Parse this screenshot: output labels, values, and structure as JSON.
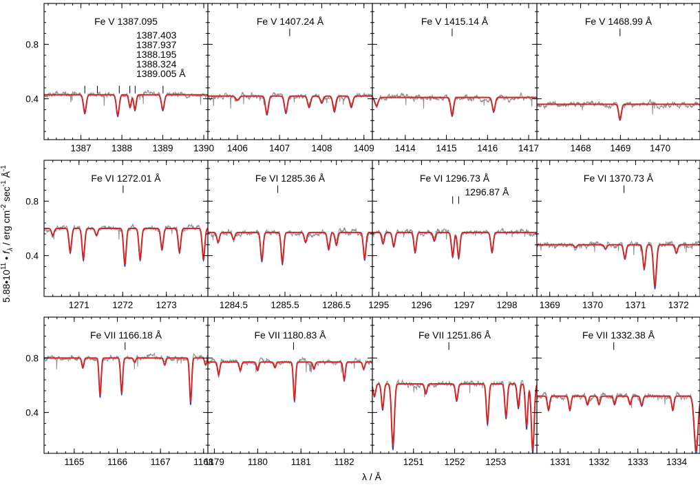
{
  "chart_data": {
    "type": "line",
    "xlabel": "λ / Å",
    "ylabel_parts": {
      "scale": "5.88•10",
      "scale_exp": "11",
      "dot": " • ",
      "f": "f",
      "lambda_sub": "λ",
      "unit_a": " / erg cm",
      "unit_a_exp": "-2",
      "unit_b": " sec",
      "unit_b_exp": "-1",
      "unit_c": " Å",
      "unit_c_exp": "-1"
    },
    "rows": [
      {
        "ylim": [
          0.1,
          1.1
        ],
        "yticks": [
          0.4,
          0.8
        ],
        "ytick_labels": [
          "0.4",
          "0.8"
        ],
        "panels": [
          {
            "xlim": [
              1386.1,
              1390.1
            ],
            "xticks": [
              1387,
              1388,
              1389,
              1390
            ],
            "xtick_labels": [
              "1387",
              "1388",
              "1389",
              "1390"
            ],
            "label": "Fe V 1387.095",
            "extra_labels": [
              "1387.403",
              "1387.937",
              "1388.195",
              "1388.324",
              "1389.005 Å"
            ],
            "markers": [
              1387.095,
              1387.403,
              1387.937,
              1388.195,
              1388.324,
              1389.005
            ],
            "marker_y": 0.44,
            "continuum": 0.43,
            "lines": [
              {
                "x": 1387.095,
                "depth": 0.13,
                "width": 0.035
              },
              {
                "x": 1387.9,
                "depth": 0.15,
                "width": 0.035
              },
              {
                "x": 1388.2,
                "depth": 0.09,
                "width": 0.03
              },
              {
                "x": 1388.32,
                "depth": 0.11,
                "width": 0.03
              },
              {
                "x": 1389.0,
                "depth": 0.11,
                "width": 0.035
              }
            ]
          },
          {
            "xlim": [
              1405.3,
              1409.2
            ],
            "xticks": [
              1406,
              1407,
              1408,
              1409
            ],
            "xtick_labels": [
              "1406",
              "1407",
              "1408",
              "1409"
            ],
            "label": "Fe V 1407.24 Å",
            "extra_labels": [],
            "markers": [
              1407.24
            ],
            "marker_y": 0.86,
            "continuum": 0.42,
            "lines": [
              {
                "x": 1406.0,
                "depth": 0.03,
                "width": 0.04
              },
              {
                "x": 1406.7,
                "depth": 0.13,
                "width": 0.035
              },
              {
                "x": 1407.15,
                "depth": 0.12,
                "width": 0.035
              },
              {
                "x": 1407.7,
                "depth": 0.08,
                "width": 0.035
              },
              {
                "x": 1408.0,
                "depth": 0.05,
                "width": 0.035
              },
              {
                "x": 1408.3,
                "depth": 0.11,
                "width": 0.035
              },
              {
                "x": 1408.7,
                "depth": 0.08,
                "width": 0.035
              }
            ]
          },
          {
            "xlim": [
              1413.2,
              1417.2
            ],
            "xticks": [
              1414,
              1415,
              1416,
              1417
            ],
            "xtick_labels": [
              "1414",
              "1415",
              "1416",
              "1417"
            ],
            "label": "Fe V 1415.14 Å",
            "extra_labels": [],
            "markers": [
              1415.14
            ],
            "marker_y": 0.86,
            "continuum": 0.41,
            "lines": [
              {
                "x": 1413.3,
                "depth": 0.06,
                "width": 0.04
              },
              {
                "x": 1415.14,
                "depth": 0.13,
                "width": 0.035
              },
              {
                "x": 1416.15,
                "depth": 0.1,
                "width": 0.035
              }
            ]
          },
          {
            "xlim": [
              1466.9,
              1471.0
            ],
            "xticks": [
              1468,
              1469,
              1470
            ],
            "xtick_labels": [
              "1468",
              "1469",
              "1470"
            ],
            "label": "Fe V 1468.99 Å",
            "extra_labels": [],
            "markers": [
              1468.99
            ],
            "marker_y": 0.86,
            "continuum": 0.36,
            "lines": [
              {
                "x": 1468.99,
                "depth": 0.11,
                "width": 0.035
              }
            ]
          }
        ]
      },
      {
        "ylim": [
          0.1,
          1.1
        ],
        "yticks": [
          0.4,
          0.8
        ],
        "ytick_labels": [
          "0.4",
          "0.8"
        ],
        "panels": [
          {
            "xlim": [
              1270.2,
              1273.95
            ],
            "xticks": [
              1271,
              1272,
              1273
            ],
            "xtick_labels": [
              "1271",
              "1272",
              "1273"
            ],
            "label": "Fe VI 1272.01 Å",
            "extra_labels": [],
            "markers": [
              1272.01
            ],
            "marker_y": 0.86,
            "continuum": 0.6,
            "lines": [
              {
                "x": 1270.4,
                "depth": 0.05,
                "width": 0.03
              },
              {
                "x": 1270.8,
                "depth": 0.17,
                "width": 0.03
              },
              {
                "x": 1271.1,
                "depth": 0.22,
                "width": 0.03
              },
              {
                "x": 1271.4,
                "depth": 0.05,
                "width": 0.03
              },
              {
                "x": 1272.05,
                "depth": 0.26,
                "width": 0.03
              },
              {
                "x": 1272.4,
                "depth": 0.22,
                "width": 0.03
              },
              {
                "x": 1272.9,
                "depth": 0.15,
                "width": 0.03
              },
              {
                "x": 1273.3,
                "depth": 0.17,
                "width": 0.03
              },
              {
                "x": 1273.85,
                "depth": 0.22,
                "width": 0.03
              }
            ]
          },
          {
            "xlim": [
              1284.0,
              1287.2
            ],
            "xticks": [
              1284.5,
              1285.5,
              1286.5
            ],
            "xtick_labels": [
              "1284.5",
              "1285.5",
              "1286.5"
            ],
            "label": "Fe VI 1285.36 Å",
            "extra_labels": [],
            "markers": [
              1285.36
            ],
            "marker_y": 0.86,
            "continuum": 0.57,
            "lines": [
              {
                "x": 1284.2,
                "depth": 0.07,
                "width": 0.025
              },
              {
                "x": 1284.5,
                "depth": 0.05,
                "width": 0.025
              },
              {
                "x": 1285.05,
                "depth": 0.2,
                "width": 0.025
              },
              {
                "x": 1285.45,
                "depth": 0.22,
                "width": 0.025
              },
              {
                "x": 1285.9,
                "depth": 0.07,
                "width": 0.025
              },
              {
                "x": 1286.35,
                "depth": 0.12,
                "width": 0.025
              },
              {
                "x": 1286.5,
                "depth": 0.09,
                "width": 0.025
              },
              {
                "x": 1287.05,
                "depth": 0.19,
                "width": 0.025
              }
            ]
          },
          {
            "xlim": [
              1294.85,
              1298.7
            ],
            "xticks": [
              1295,
              1296,
              1297,
              1298
            ],
            "xtick_labels": [
              "1295",
              "1296",
              "1297",
              "1298"
            ],
            "label": "Fe VI 1296.73 Å",
            "extra_labels": [
              "1296.87 Å"
            ],
            "markers": [
              1296.73,
              1296.87
            ],
            "marker_y": 0.78,
            "continuum": 0.57,
            "lines": [
              {
                "x": 1295.1,
                "depth": 0.08,
                "width": 0.03
              },
              {
                "x": 1295.35,
                "depth": 0.1,
                "width": 0.03
              },
              {
                "x": 1295.85,
                "depth": 0.14,
                "width": 0.03
              },
              {
                "x": 1296.3,
                "depth": 0.06,
                "width": 0.03
              },
              {
                "x": 1296.73,
                "depth": 0.17,
                "width": 0.03
              },
              {
                "x": 1296.87,
                "depth": 0.18,
                "width": 0.03
              },
              {
                "x": 1297.65,
                "depth": 0.14,
                "width": 0.03
              }
            ]
          },
          {
            "xlim": [
              1368.7,
              1372.5
            ],
            "xticks": [
              1369,
              1370,
              1371,
              1372
            ],
            "xtick_labels": [
              "1369",
              "1370",
              "1371",
              "1372"
            ],
            "label": "Fe VI 1370.73 Å",
            "extra_labels": [],
            "markers": [
              1370.73
            ],
            "marker_y": 0.86,
            "continuum": 0.48,
            "lines": [
              {
                "x": 1369.6,
                "depth": 0.02,
                "width": 0.03
              },
              {
                "x": 1370.3,
                "depth": 0.03,
                "width": 0.03
              },
              {
                "x": 1370.75,
                "depth": 0.1,
                "width": 0.03
              },
              {
                "x": 1371.2,
                "depth": 0.17,
                "width": 0.03
              },
              {
                "x": 1371.45,
                "depth": 0.3,
                "width": 0.035
              },
              {
                "x": 1371.95,
                "depth": 0.06,
                "width": 0.03
              }
            ]
          }
        ]
      },
      {
        "ylim": [
          0.1,
          1.1
        ],
        "yticks": [
          0.4,
          0.8
        ],
        "ytick_labels": [
          "0.4",
          "0.8"
        ],
        "panels": [
          {
            "xlim": [
              1164.3,
              1168.1
            ],
            "xticks": [
              1165,
              1166,
              1167,
              1168
            ],
            "xtick_labels": [
              "1165",
              "1166",
              "1167",
              "1168"
            ],
            "label": "Fe VII 1166.18 Å",
            "extra_labels": [],
            "markers": [
              1166.18
            ],
            "marker_y": 0.86,
            "continuum": 0.8,
            "lines": [
              {
                "x": 1165.2,
                "depth": 0.07,
                "width": 0.025
              },
              {
                "x": 1165.6,
                "depth": 0.27,
                "width": 0.025
              },
              {
                "x": 1166.1,
                "depth": 0.25,
                "width": 0.025
              },
              {
                "x": 1166.4,
                "depth": 0.03,
                "width": 0.025
              },
              {
                "x": 1167.1,
                "depth": 0.05,
                "width": 0.025
              },
              {
                "x": 1167.7,
                "depth": 0.32,
                "width": 0.025
              },
              {
                "x": 1168.05,
                "depth": 0.05,
                "width": 0.025
              }
            ]
          },
          {
            "xlim": [
              1178.85,
              1182.65
            ],
            "xticks": [
              1179,
              1180,
              1181,
              1182
            ],
            "xtick_labels": [
              "1179",
              "1180",
              "1181",
              "1182"
            ],
            "label": "Fe VII 1180.83 Å",
            "extra_labels": [],
            "markers": [
              1180.83
            ],
            "marker_y": 0.86,
            "continuum": 0.77,
            "lines": [
              {
                "x": 1179.1,
                "depth": 0.09,
                "width": 0.025
              },
              {
                "x": 1179.6,
                "depth": 0.06,
                "width": 0.025
              },
              {
                "x": 1180.0,
                "depth": 0.06,
                "width": 0.025
              },
              {
                "x": 1180.4,
                "depth": 0.04,
                "width": 0.025
              },
              {
                "x": 1180.85,
                "depth": 0.27,
                "width": 0.025
              },
              {
                "x": 1181.3,
                "depth": 0.05,
                "width": 0.025
              },
              {
                "x": 1182.0,
                "depth": 0.13,
                "width": 0.025
              },
              {
                "x": 1182.45,
                "depth": 0.05,
                "width": 0.025
              }
            ]
          },
          {
            "xlim": [
              1250.0,
              1254.0
            ],
            "xticks": [
              1251,
              1252,
              1253
            ],
            "xtick_labels": [
              "1251",
              "1252",
              "1253"
            ],
            "label": "Fe VII 1251.86 Å",
            "extra_labels": [],
            "markers": [
              1251.86
            ],
            "marker_y": 0.86,
            "continuum": 0.61,
            "lines": [
              {
                "x": 1250.05,
                "depth": 0.09,
                "width": 0.03
              },
              {
                "x": 1250.25,
                "depth": 0.18,
                "width": 0.03
              },
              {
                "x": 1250.5,
                "depth": 0.45,
                "width": 0.035
              },
              {
                "x": 1251.3,
                "depth": 0.07,
                "width": 0.03
              },
              {
                "x": 1252.05,
                "depth": 0.12,
                "width": 0.03
              },
              {
                "x": 1252.8,
                "depth": 0.28,
                "width": 0.03
              },
              {
                "x": 1253.25,
                "depth": 0.24,
                "width": 0.03
              },
              {
                "x": 1253.55,
                "depth": 0.17,
                "width": 0.03
              },
              {
                "x": 1253.75,
                "depth": 0.31,
                "width": 0.03
              },
              {
                "x": 1253.9,
                "depth": 0.48,
                "width": 0.035
              }
            ]
          },
          {
            "xlim": [
              1330.4,
              1334.6
            ],
            "xticks": [
              1331,
              1332,
              1333,
              1334
            ],
            "xtick_labels": [
              "1331",
              "1332",
              "1333",
              "1334"
            ],
            "label": "Fe VII 1332.38 Å",
            "extra_labels": [],
            "markers": [
              1332.38
            ],
            "marker_y": 0.86,
            "continuum": 0.52,
            "lines": [
              {
                "x": 1330.7,
                "depth": 0.1,
                "width": 0.03
              },
              {
                "x": 1331.25,
                "depth": 0.1,
                "width": 0.03
              },
              {
                "x": 1331.7,
                "depth": 0.06,
                "width": 0.03
              },
              {
                "x": 1332.0,
                "depth": 0.06,
                "width": 0.03
              },
              {
                "x": 1332.4,
                "depth": 0.06,
                "width": 0.03
              },
              {
                "x": 1332.8,
                "depth": 0.06,
                "width": 0.03
              },
              {
                "x": 1333.1,
                "depth": 0.07,
                "width": 0.03
              },
              {
                "x": 1333.9,
                "depth": 0.1,
                "width": 0.03
              },
              {
                "x": 1334.5,
                "depth": 0.4,
                "width": 0.05
              }
            ]
          }
        ]
      }
    ],
    "series_colors": {
      "observation": "#8c8c8c",
      "model_a": "#1f3fbf",
      "model_b": "#d42424"
    }
  }
}
